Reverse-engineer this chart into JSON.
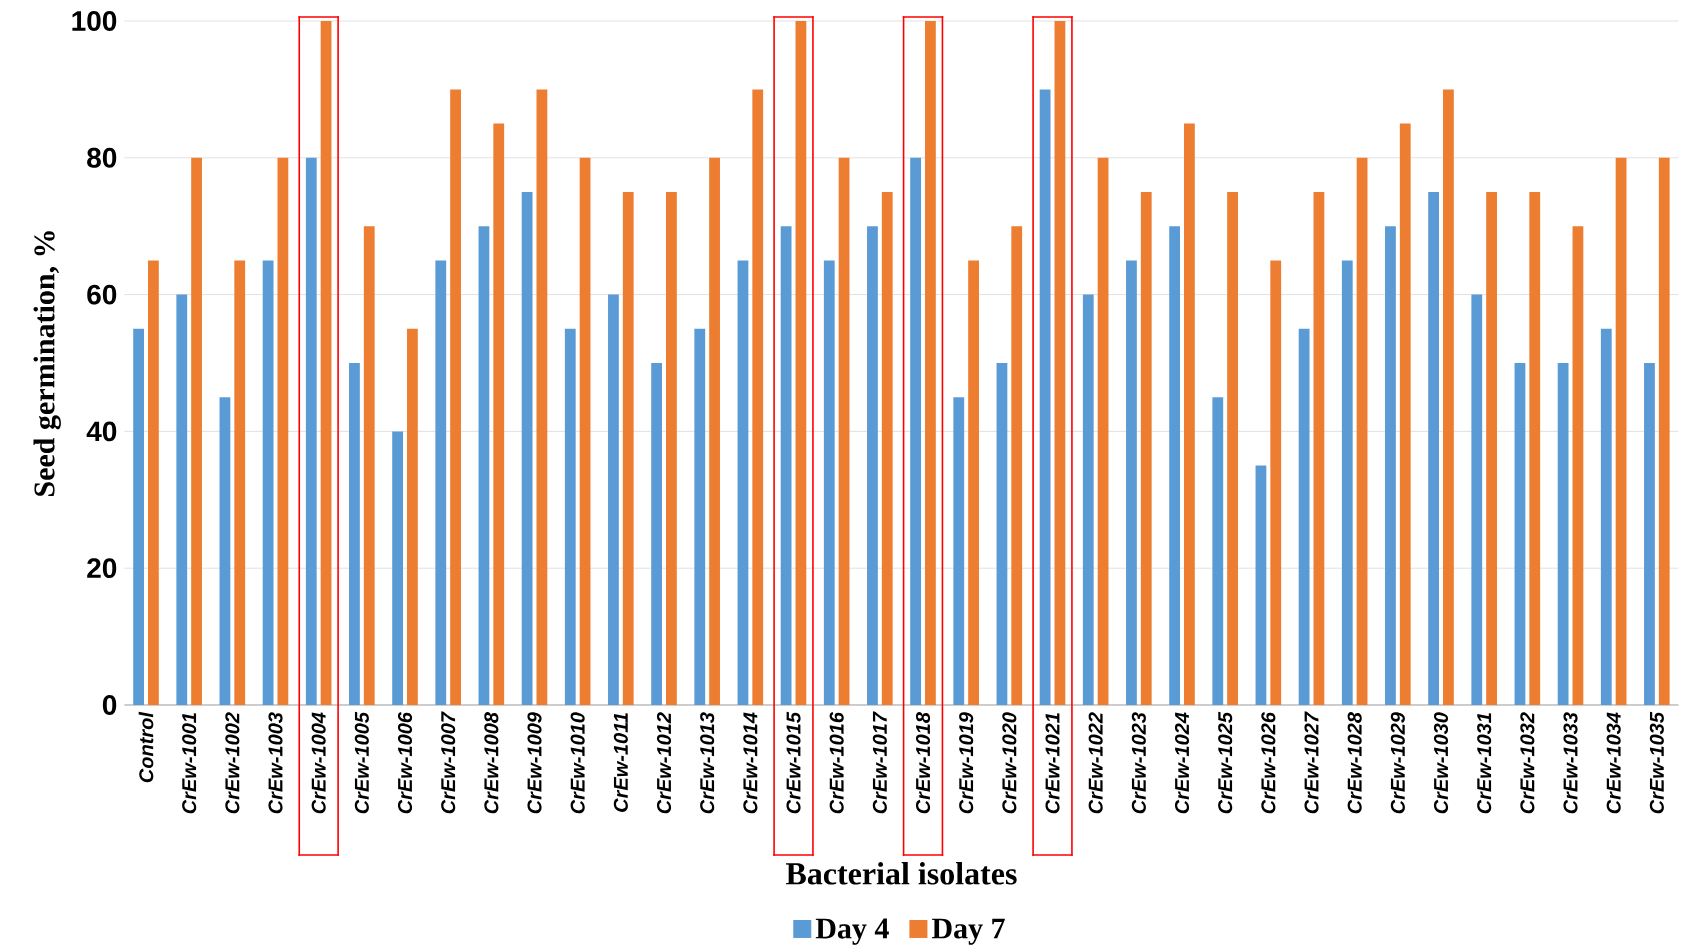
{
  "chart_data": {
    "type": "bar",
    "xlabel": "Bacterial isolates",
    "ylabel": "Seed germination, %",
    "categories": [
      "Control",
      "CrEw-1001",
      "CrEw-1002",
      "CrEw-1003",
      "CrEw-1004",
      "CrEw-1005",
      "CrEw-1006",
      "CrEw-1007",
      "CrEw-1008",
      "CrEw-1009",
      "CrEw-1010",
      "CrEw-1011",
      "CrEw-1012",
      "CrEw-1013",
      "CrEw-1014",
      "CrEw-1015",
      "CrEw-1016",
      "CrEw-1017",
      "CrEw-1018",
      "CrEw-1019",
      "CrEw-1020",
      "CrEw-1021",
      "CrEw-1022",
      "CrEw-1023",
      "CrEw-1024",
      "CrEw-1025",
      "CrEw-1026",
      "CrEw-1027",
      "CrEw-1028",
      "CrEw-1029",
      "CrEw-1030",
      "CrEw-1031",
      "CrEw-1032",
      "CrEw-1033",
      "CrEw-1034",
      "CrEw-1035"
    ],
    "series": [
      {
        "name": "Day 4",
        "color": "#5b9bd5",
        "values": [
          55,
          60,
          45,
          65,
          80,
          50,
          40,
          65,
          70,
          75,
          55,
          60,
          50,
          55,
          65,
          70,
          65,
          70,
          80,
          45,
          50,
          90,
          60,
          65,
          70,
          45,
          35,
          55,
          65,
          70,
          75,
          60,
          50,
          50,
          55,
          50
        ]
      },
      {
        "name": "Day 7",
        "color": "#ed7d31",
        "values": [
          65,
          80,
          65,
          80,
          100,
          70,
          55,
          90,
          85,
          90,
          80,
          75,
          75,
          80,
          90,
          100,
          80,
          75,
          100,
          65,
          70,
          100,
          80,
          75,
          85,
          75,
          65,
          75,
          80,
          85,
          90,
          75,
          75,
          70,
          80,
          80
        ]
      }
    ],
    "ylim": [
      0,
      100
    ],
    "yticks": [
      0,
      20,
      40,
      60,
      80,
      100
    ],
    "grid": "y",
    "legend": "bottom"
  }
}
